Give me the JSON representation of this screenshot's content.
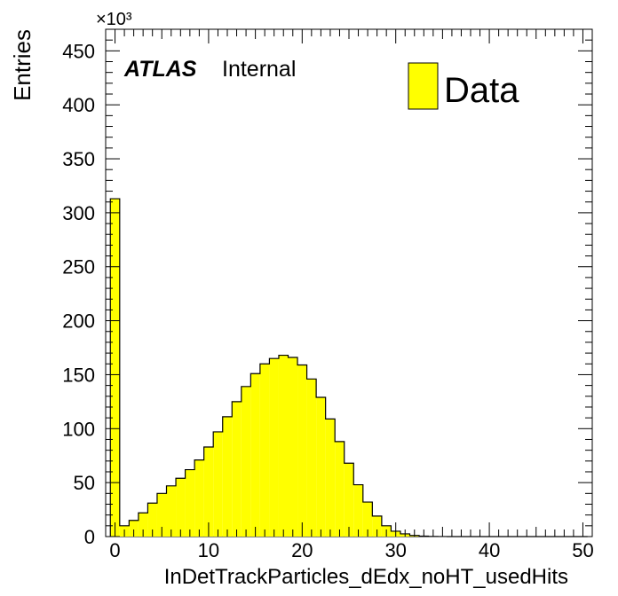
{
  "chart_data": {
    "type": "bar",
    "title": "",
    "xlabel": "InDetTrackParticles_dEdx_noHT_usedHits",
    "ylabel": "Entries",
    "y_multiplier": "×10³",
    "atlas_label": "ATLAS",
    "atlas_status": "Internal",
    "xlim": [
      -1,
      51
    ],
    "ylim": [
      0,
      470
    ],
    "x_ticks": [
      0,
      10,
      20,
      30,
      40,
      50
    ],
    "y_ticks": [
      0,
      50,
      100,
      150,
      200,
      250,
      300,
      350,
      400,
      450
    ],
    "bin_width": 1,
    "bin_start": -0.5,
    "series": [
      {
        "name": "Data",
        "color": "#ffff00",
        "values": [
          313,
          10,
          15,
          22,
          31,
          40,
          47,
          54,
          62,
          71,
          83,
          97,
          111,
          125,
          139,
          151,
          160,
          165,
          168,
          166,
          159,
          146,
          129,
          109,
          88,
          68,
          48,
          32,
          19,
          10,
          5,
          2.5,
          1,
          0.4,
          0.15,
          0.05,
          0,
          0,
          0,
          0,
          0,
          0,
          0,
          0,
          0,
          0,
          0,
          0,
          0,
          0,
          0
        ]
      }
    ],
    "legend": {
      "position": "top-right",
      "label": "Data"
    },
    "grid": false
  }
}
